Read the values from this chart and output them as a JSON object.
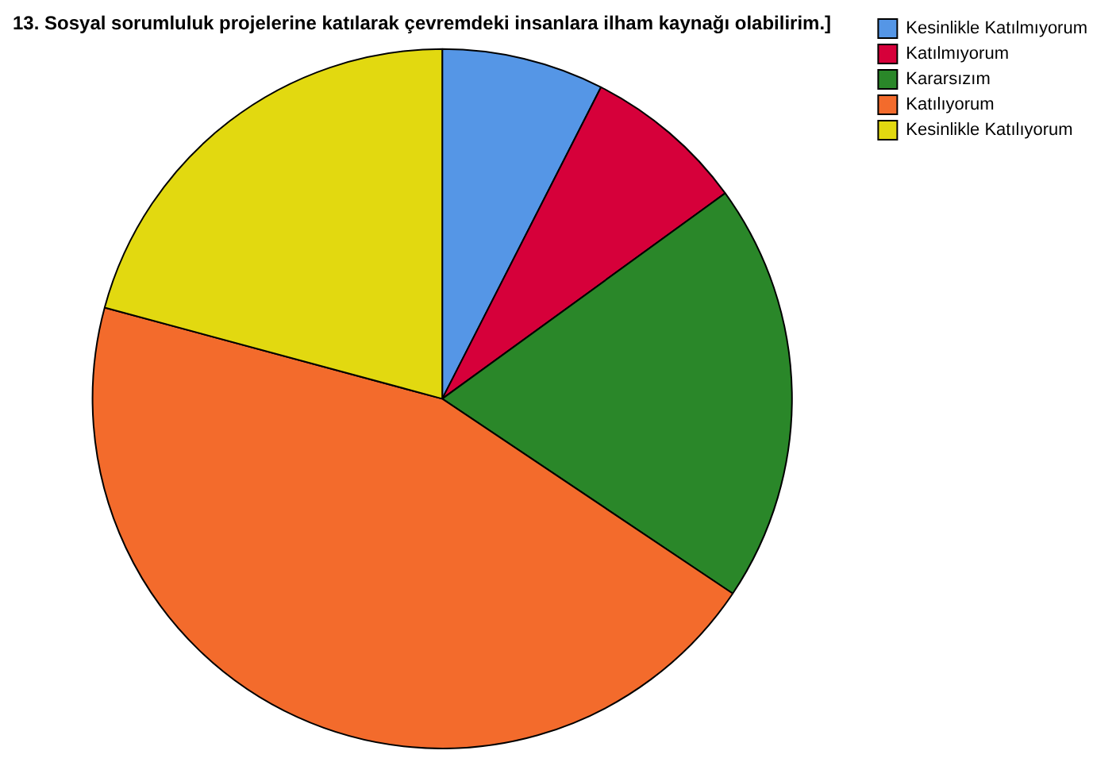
{
  "chart_data": {
    "type": "pie",
    "title": "13. Sosyal sorumluluk projelerine katılarak çevremdeki insanlara ilham kaynağı olabilirim.]",
    "categories": [
      "Kesinlikle Katılmıyorum",
      "Katılmıyorum",
      "Kararsızım",
      "Katılıyorum",
      "Kesinlikle Katılıyorum"
    ],
    "values": [
      7.5,
      7.5,
      19.4,
      44.8,
      20.8
    ],
    "colors": [
      "#5596e6",
      "#d6003a",
      "#2a8729",
      "#f36b2c",
      "#e2d910"
    ],
    "legend": "top right"
  }
}
